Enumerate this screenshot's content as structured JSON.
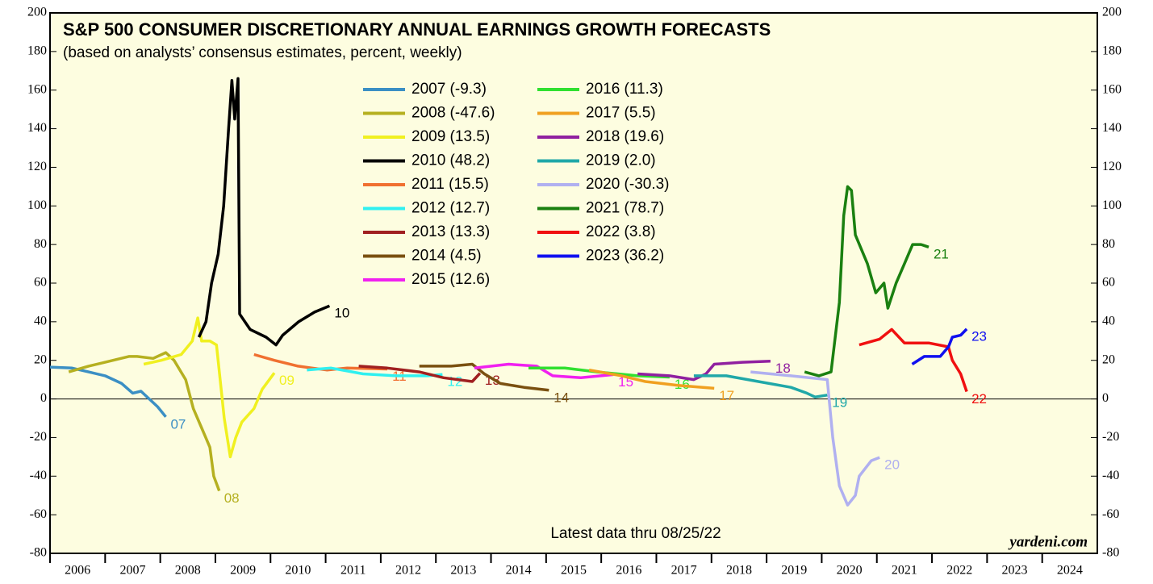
{
  "chart_data": {
    "type": "line",
    "title": "S&P 500 CONSUMER DISCRETIONARY ANNUAL EARNINGS GROWTH FORECASTS",
    "subtitle": "(based on analysts’ consensus estimates, percent, weekly)",
    "annotation": "Latest data thru 08/25/22",
    "source": "yardeni.com",
    "xlim": [
      2006,
      2025
    ],
    "xticks": [
      2006,
      2007,
      2008,
      2009,
      2010,
      2011,
      2012,
      2013,
      2014,
      2015,
      2016,
      2017,
      2018,
      2019,
      2020,
      2021,
      2022,
      2023,
      2024
    ],
    "ylim": [
      -80,
      200
    ],
    "yticks": [
      -80,
      -60,
      -40,
      -20,
      0,
      20,
      40,
      60,
      80,
      100,
      120,
      140,
      160,
      180,
      200
    ],
    "series": [
      {
        "name": "2007 (-9.3)",
        "end_label": "07",
        "color": "#3b8fc4",
        "x": [
          2006.0,
          2006.4,
          2006.7,
          2007.0,
          2007.3,
          2007.5,
          2007.65,
          2007.8,
          2007.95,
          2008.1
        ],
        "values": [
          16.5,
          16,
          14,
          12,
          8,
          3,
          4,
          0,
          -4,
          -9.3
        ]
      },
      {
        "name": "2008 (-47.6)",
        "end_label": "08",
        "color": "#b5b020",
        "x": [
          2006.34,
          2006.7,
          2007.0,
          2007.43,
          2007.58,
          2007.87,
          2008.1,
          2008.25,
          2008.46,
          2008.6,
          2008.75,
          2008.9,
          2008.97,
          2009.07
        ],
        "values": [
          14,
          17,
          19,
          22,
          22,
          21,
          24,
          20,
          10,
          -5,
          -15,
          -25,
          -40,
          -47.6
        ]
      },
      {
        "name": "2009 (13.5)",
        "end_label": "09",
        "color": "#f0f020",
        "x": [
          2007.7,
          2008.02,
          2008.38,
          2008.58,
          2008.68,
          2008.75,
          2008.9,
          2009.02,
          2009.16,
          2009.27,
          2009.37,
          2009.48,
          2009.7,
          2009.85,
          2010.07
        ],
        "values": [
          18,
          20,
          23,
          30,
          42,
          30,
          30,
          28,
          -10,
          -30,
          -20,
          -12,
          -5,
          5,
          13.5
        ]
      },
      {
        "name": "2010 (48.2)",
        "end_label": "10",
        "color": "#000000",
        "x": [
          2008.7,
          2008.83,
          2008.93,
          2009.05,
          2009.15,
          2009.24,
          2009.3,
          2009.35,
          2009.41,
          2009.44,
          2009.63,
          2009.92,
          2010.1,
          2010.22,
          2010.51,
          2010.8,
          2011.07
        ],
        "values": [
          32,
          40,
          60,
          75,
          100,
          140,
          165,
          145,
          166,
          44,
          36,
          32,
          28,
          33,
          40,
          45,
          48.2
        ]
      },
      {
        "name": "2011 (15.5)",
        "end_label": "11",
        "color": "#f07030",
        "x": [
          2009.7,
          2010.07,
          2010.5,
          2011.02,
          2011.39,
          2012.12
        ],
        "values": [
          23,
          20,
          17,
          15,
          16,
          15.5
        ]
      },
      {
        "name": "2012 (12.7)",
        "end_label": "12",
        "color": "#30f0f0",
        "x": [
          2010.66,
          2011.1,
          2011.68,
          2012.27,
          2012.85,
          2013.12
        ],
        "values": [
          15,
          16,
          13,
          12,
          12,
          12.7
        ]
      },
      {
        "name": "2013 (13.3)",
        "end_label": "13",
        "color": "#a02020",
        "x": [
          2011.6,
          2012.12,
          2012.7,
          2013.14,
          2013.66,
          2013.8
        ],
        "values": [
          17,
          16,
          14,
          11,
          9,
          13.3
        ]
      },
      {
        "name": "2014 (4.5)",
        "end_label": "14",
        "color": "#7a5010",
        "x": [
          2012.7,
          2013.28,
          2013.66,
          2013.88,
          2014.17,
          2014.6,
          2015.05
        ],
        "values": [
          17,
          17,
          18,
          13,
          8,
          6,
          4.5
        ]
      },
      {
        "name": "2015 (12.6)",
        "end_label": "15",
        "color": "#f020f0",
        "x": [
          2013.7,
          2014.32,
          2014.83,
          2015.12,
          2015.63,
          2016.22
        ],
        "values": [
          16,
          18,
          17,
          12,
          11,
          12.6
        ]
      },
      {
        "name": "2016 (11.3)",
        "end_label": "16",
        "color": "#30e030",
        "x": [
          2014.68,
          2015.34,
          2015.93,
          2016.66,
          2017.24
        ],
        "values": [
          16,
          16,
          14,
          12,
          11.3
        ]
      },
      {
        "name": "2017 (5.5)",
        "end_label": "17",
        "color": "#f0a020",
        "x": [
          2015.78,
          2016.37,
          2016.8,
          2017.39,
          2018.05
        ],
        "values": [
          15,
          12,
          9,
          7,
          5.5
        ]
      },
      {
        "name": "2018 (19.6)",
        "end_label": "18",
        "color": "#9020a0",
        "x": [
          2016.66,
          2017.24,
          2017.68,
          2017.9,
          2018.05,
          2018.56,
          2019.07
        ],
        "values": [
          13,
          12,
          10,
          13,
          18,
          19,
          19.6
        ]
      },
      {
        "name": "2019 (2.0)",
        "end_label": "19",
        "color": "#20a8a8",
        "x": [
          2017.68,
          2018.27,
          2018.85,
          2019.44,
          2019.73,
          2019.88,
          2020.1
        ],
        "values": [
          12,
          12,
          9,
          6,
          3,
          1,
          2.0
        ]
      },
      {
        "name": "2020 (-30.3)",
        "end_label": "20",
        "color": "#b0b0f0",
        "x": [
          2018.71,
          2019.44,
          2020.1,
          2020.2,
          2020.32,
          2020.47,
          2020.61,
          2020.68,
          2020.9,
          2021.05
        ],
        "values": [
          14,
          12,
          10,
          -20,
          -45,
          -55,
          -50,
          -40,
          -32,
          -30.3
        ]
      },
      {
        "name": "2021 (78.7)",
        "end_label": "21",
        "color": "#1a8010",
        "x": [
          2019.69,
          2019.95,
          2020.17,
          2020.32,
          2020.4,
          2020.47,
          2020.54,
          2020.61,
          2020.83,
          2020.98,
          2021.13,
          2021.2,
          2021.35,
          2021.5,
          2021.65,
          2021.8,
          2021.94
        ],
        "values": [
          14,
          12,
          14,
          50,
          95,
          110,
          108,
          85,
          70,
          55,
          60,
          47,
          60,
          70,
          80,
          80,
          78.7
        ]
      },
      {
        "name": "2022 (3.8)",
        "end_label": "22",
        "color": "#f01010",
        "x": [
          2020.68,
          2021.05,
          2021.27,
          2021.5,
          2021.94,
          2022.3,
          2022.37,
          2022.52,
          2022.63
        ],
        "values": [
          28,
          31,
          36,
          29,
          29,
          27,
          20,
          13,
          3.8
        ]
      },
      {
        "name": "2023 (36.2)",
        "end_label": "23",
        "color": "#1010f0",
        "x": [
          2021.64,
          2021.86,
          2022.15,
          2022.3,
          2022.37,
          2022.52,
          2022.63
        ],
        "values": [
          18,
          22,
          22,
          27,
          32,
          33,
          36.2
        ]
      }
    ]
  }
}
